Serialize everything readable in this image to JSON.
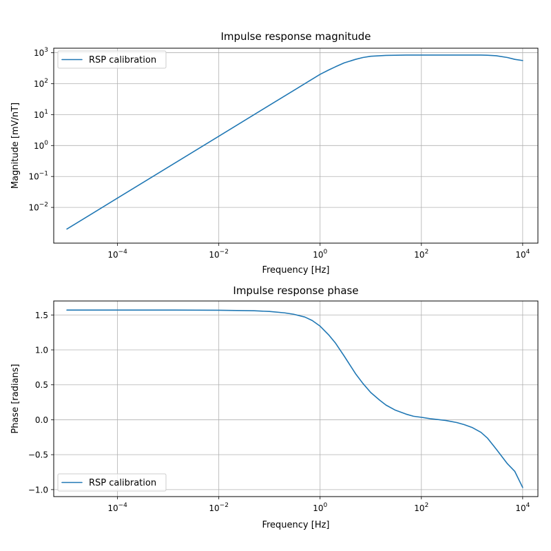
{
  "colors": {
    "series": "#1f77b4"
  },
  "chart_data": [
    {
      "type": "line",
      "title": "Impulse response magnitude",
      "xlabel": "Frequency [Hz]",
      "ylabel": "Magnitude [mV/nT]",
      "xscale": "log",
      "yscale": "log",
      "xlim": [
        5.5e-06,
        20000
      ],
      "ylim": [
        0.0007,
        1400
      ],
      "grid": true,
      "legend_loc": "upper left",
      "xticks": [
        {
          "value": 0.0001,
          "base": "10",
          "exp": "−4"
        },
        {
          "value": 0.01,
          "base": "10",
          "exp": "−2"
        },
        {
          "value": 1,
          "base": "10",
          "exp": "0"
        },
        {
          "value": 100,
          "base": "10",
          "exp": "2"
        },
        {
          "value": 10000,
          "base": "10",
          "exp": "4"
        }
      ],
      "yticks": [
        {
          "value": 0.01,
          "base": "10",
          "exp": "−2"
        },
        {
          "value": 0.1,
          "base": "10",
          "exp": "−1"
        },
        {
          "value": 1,
          "base": "10",
          "exp": "0"
        },
        {
          "value": 10,
          "base": "10",
          "exp": "1"
        },
        {
          "value": 100,
          "base": "10",
          "exp": "2"
        },
        {
          "value": 1000,
          "base": "10",
          "exp": "3"
        }
      ],
      "series": [
        {
          "name": "RSP calibration",
          "x": [
            1e-05,
            0.0001,
            0.001,
            0.01,
            0.1,
            0.3,
            0.5,
            1,
            1.5,
            2,
            3,
            5,
            7,
            10,
            20,
            50,
            100,
            300,
            1000,
            1500,
            2000,
            3000,
            5000,
            7000,
            10000
          ],
          "y": [
            0.002,
            0.02,
            0.2,
            2,
            20,
            60,
            100,
            200,
            280,
            350,
            470,
            610,
            700,
            770,
            820,
            840,
            840,
            840,
            840,
            840,
            830,
            800,
            700,
            610,
            560
          ]
        }
      ]
    },
    {
      "type": "line",
      "title": "Impulse response phase",
      "xlabel": "Frequency [Hz]",
      "ylabel": "Phase [radians]",
      "xscale": "log",
      "yscale": "linear",
      "xlim": [
        5.5e-06,
        20000
      ],
      "ylim": [
        -1.1,
        1.7
      ],
      "grid": true,
      "legend_loc": "lower left",
      "xticks": [
        {
          "value": 0.0001,
          "base": "10",
          "exp": "−4"
        },
        {
          "value": 0.01,
          "base": "10",
          "exp": "−2"
        },
        {
          "value": 1,
          "base": "10",
          "exp": "0"
        },
        {
          "value": 100,
          "base": "10",
          "exp": "2"
        },
        {
          "value": 10000,
          "base": "10",
          "exp": "4"
        }
      ],
      "yticks": [
        {
          "value": 1.5,
          "label": "1.5"
        },
        {
          "value": 1.0,
          "label": "1.0"
        },
        {
          "value": 0.5,
          "label": "0.5"
        },
        {
          "value": 0.0,
          "label": "0.0"
        },
        {
          "value": -0.5,
          "label": "−0.5"
        },
        {
          "value": -1.0,
          "label": "−1.0"
        }
      ],
      "series": [
        {
          "name": "RSP calibration",
          "x": [
            1e-05,
            0.001,
            0.01,
            0.05,
            0.1,
            0.2,
            0.3,
            0.5,
            0.7,
            1,
            1.5,
            2,
            3,
            5,
            7,
            10,
            15,
            20,
            30,
            50,
            70,
            100,
            150,
            200,
            300,
            500,
            700,
            1000,
            1500,
            2000,
            3000,
            5000,
            7000,
            10000
          ],
          "y": [
            1.57,
            1.57,
            1.568,
            1.56,
            1.55,
            1.53,
            1.51,
            1.47,
            1.42,
            1.34,
            1.21,
            1.1,
            0.91,
            0.66,
            0.52,
            0.39,
            0.28,
            0.21,
            0.14,
            0.08,
            0.05,
            0.035,
            0.015,
            0.005,
            -0.01,
            -0.04,
            -0.07,
            -0.11,
            -0.18,
            -0.26,
            -0.42,
            -0.63,
            -0.74,
            -0.97
          ]
        }
      ]
    }
  ]
}
